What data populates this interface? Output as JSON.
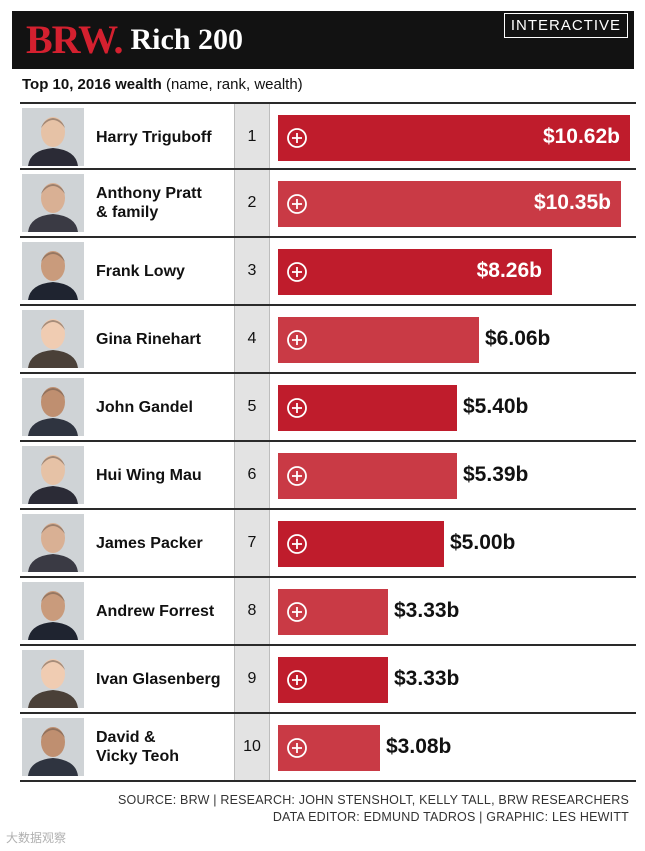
{
  "header": {
    "brand": "BRW.",
    "product": "Rich 200",
    "badge": "INTERACTIVE"
  },
  "subtitle": {
    "bold": "Top 10, 2016 wealth",
    "rest": " (name, rank, wealth)"
  },
  "chart_data": {
    "type": "bar",
    "orientation": "horizontal",
    "title": "Top 10, 2016 wealth (name, rank, wealth)",
    "unit": "$b",
    "xlim": [
      0,
      10.62
    ],
    "rows": [
      {
        "name": "Harry Triguboff",
        "rank": "1",
        "value": 10.62,
        "label": "$10.62b"
      },
      {
        "name": "Anthony Pratt\n& family",
        "rank": "2",
        "value": 10.35,
        "label": "$10.35b"
      },
      {
        "name": "Frank Lowy",
        "rank": "3",
        "value": 8.26,
        "label": "$8.26b"
      },
      {
        "name": "Gina Rinehart",
        "rank": "4",
        "value": 6.06,
        "label": "$6.06b"
      },
      {
        "name": "John Gandel",
        "rank": "5",
        "value": 5.4,
        "label": "$5.40b"
      },
      {
        "name": "Hui Wing Mau",
        "rank": "6",
        "value": 5.39,
        "label": "$5.39b"
      },
      {
        "name": "James Packer",
        "rank": "7",
        "value": 5.0,
        "label": "$5.00b"
      },
      {
        "name": "Andrew Forrest",
        "rank": "8",
        "value": 3.33,
        "label": "$3.33b"
      },
      {
        "name": "Ivan Glasenberg",
        "rank": "9",
        "value": 3.33,
        "label": "$3.33b"
      },
      {
        "name": "David &\nVicky Teoh",
        "rank": "10",
        "value": 3.08,
        "label": "$3.08b"
      }
    ]
  },
  "colors": {
    "bar": "#bf1c2c",
    "bar_alt": "#c93a45",
    "brand_red": "#d4202f",
    "header_bg": "#121212"
  },
  "footer": {
    "line1": "SOURCE: BRW | RESEARCH: JOHN STENSHOLT, KELLY TALL, BRW RESEARCHERS",
    "line2": "DATA EDITOR: EDMUND TADROS | GRAPHIC: LES HEWITT"
  },
  "watermark": "大数据观察"
}
